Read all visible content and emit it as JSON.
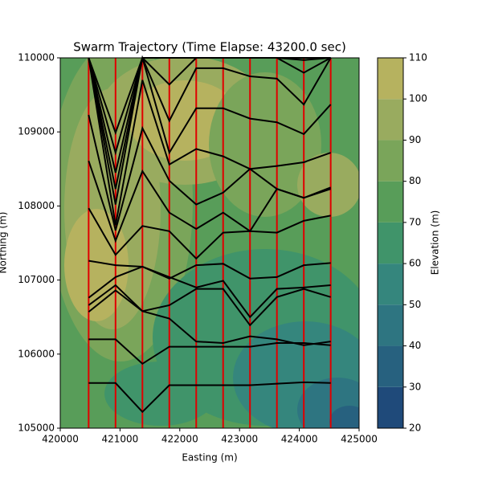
{
  "chart_data": {
    "type": "line",
    "title": "Swarm Trajectory (Time Elapse: 43200.0 sec)",
    "x_label": "Easting (m)",
    "y_label": "Northing (m)",
    "xlim": [
      420000,
      425000
    ],
    "ylim": [
      105000,
      110000
    ],
    "xticks": [
      420000,
      421000,
      422000,
      423000,
      424000,
      425000
    ],
    "yticks": [
      105000,
      106000,
      107000,
      108000,
      109000,
      110000
    ],
    "x": [
      420475,
      420925,
      421375,
      421825,
      422275,
      422725,
      423175,
      423625,
      424075,
      424525
    ],
    "vertical_line_color": "#e00000",
    "series": [
      {
        "color": "#000000",
        "values": [
          105610,
          105610,
          105220,
          105580,
          105580,
          105580,
          105580,
          105600,
          105620,
          105610
        ]
      },
      {
        "color": "#000000",
        "values": [
          106200,
          106200,
          105870,
          106100,
          106100,
          106100,
          106100,
          106150,
          106150,
          106120
        ]
      },
      {
        "color": "#000000",
        "values": [
          106570,
          106860,
          106580,
          106480,
          106170,
          106150,
          106240,
          106200,
          106120,
          106170
        ]
      },
      {
        "color": "#000000",
        "values": [
          106660,
          106930,
          106580,
          106660,
          106880,
          106880,
          106390,
          106770,
          106880,
          106770
        ]
      },
      {
        "color": "#000000",
        "values": [
          106760,
          107040,
          107180,
          107040,
          106900,
          106990,
          106500,
          106880,
          106900,
          106930
        ]
      },
      {
        "color": "#000000",
        "values": [
          107260,
          107200,
          107180,
          107020,
          107200,
          107220,
          107020,
          107040,
          107200,
          107230
        ]
      },
      {
        "color": "#000000",
        "values": [
          107970,
          107340,
          107730,
          107660,
          107290,
          107640,
          107660,
          107640,
          107800,
          107870
        ]
      },
      {
        "color": "#000000",
        "values": [
          108610,
          107530,
          108470,
          107910,
          107690,
          107910,
          107660,
          108230,
          108110,
          108230
        ]
      },
      {
        "color": "#000000",
        "values": [
          109230,
          107670,
          109050,
          108340,
          108020,
          108180,
          108500,
          108230,
          108110,
          108250
        ]
      },
      {
        "color": "#000000",
        "values": [
          110000,
          107740,
          109700,
          108560,
          108770,
          108670,
          108500,
          108540,
          108590,
          108720
        ]
      },
      {
        "color": "#000000",
        "values": [
          110000,
          108020,
          110000,
          108720,
          109320,
          109320,
          109180,
          109130,
          108970,
          109370
        ]
      },
      {
        "color": "#000000",
        "values": [
          110000,
          108230,
          110000,
          109150,
          109860,
          109860,
          109750,
          109720,
          109370,
          110000
        ]
      },
      {
        "color": "#000000",
        "values": [
          110000,
          108450,
          110000,
          109640,
          110000,
          110000,
          110000,
          110000,
          109800,
          110000
        ]
      },
      {
        "color": "#000000",
        "values": [
          110000,
          108720,
          110000,
          110000,
          110000,
          110000,
          110000,
          110000,
          109970,
          110000
        ]
      },
      {
        "color": "#000000",
        "values": [
          110000,
          108990,
          110000,
          110000,
          110000,
          110000,
          110000,
          110000,
          110000,
          110000
        ]
      }
    ],
    "colorbar": {
      "label": "Elevation (m)",
      "lim": [
        20,
        110
      ],
      "ticks": [
        20,
        30,
        40,
        50,
        60,
        70,
        80,
        90,
        100,
        110
      ],
      "colors": [
        "#1f4a7a",
        "#27617f",
        "#2e7581",
        "#35867d",
        "#40946a",
        "#589d59",
        "#7aa55a",
        "#99ab5f",
        "#b6b25f"
      ]
    }
  }
}
